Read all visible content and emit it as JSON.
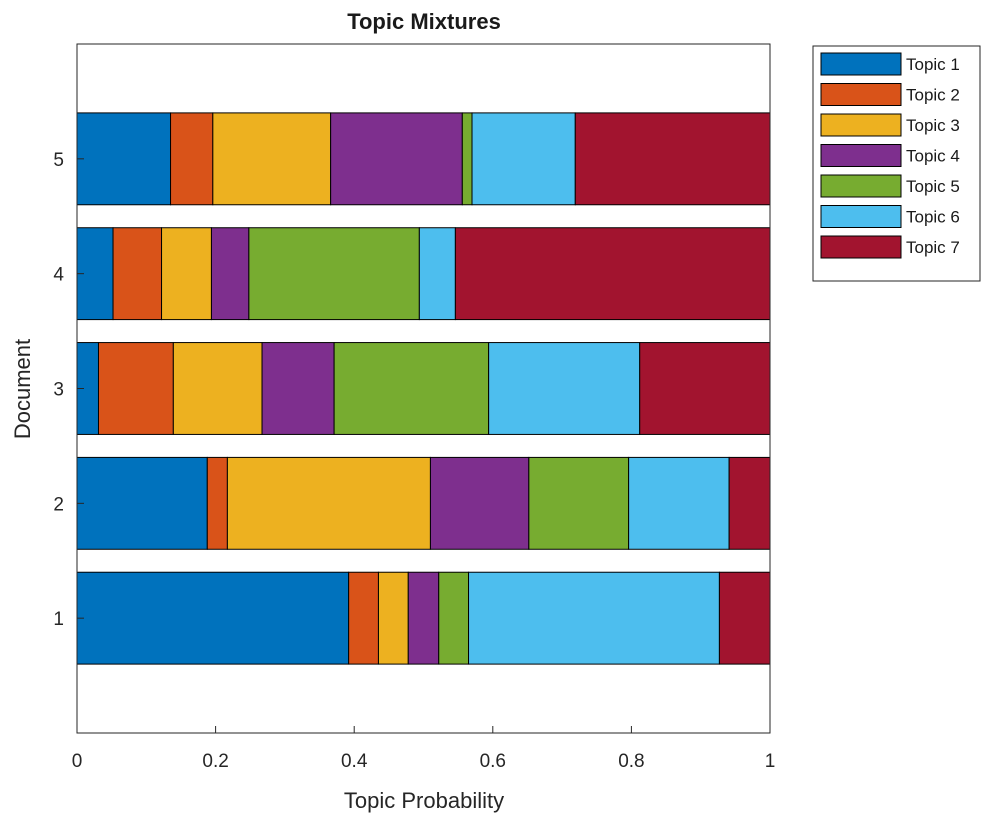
{
  "chart_data": {
    "type": "bar",
    "orientation": "horizontal",
    "stacked": true,
    "title": "Topic Mixtures",
    "xlabel": "Topic Probability",
    "ylabel": "Document",
    "xlim": [
      0,
      1
    ],
    "ylim": [
      0,
      6
    ],
    "xticks": [
      "0",
      "0.2",
      "0.4",
      "0.6",
      "0.8",
      "1"
    ],
    "categories": [
      "1",
      "2",
      "3",
      "4",
      "5"
    ],
    "legend_position": "outside-top-right",
    "grid": false,
    "series": [
      {
        "name": "Topic 1",
        "color": "#0072BD",
        "values": [
          0.392,
          0.188,
          0.031,
          0.052,
          0.135
        ]
      },
      {
        "name": "Topic 2",
        "color": "#D95319",
        "values": [
          0.043,
          0.029,
          0.108,
          0.07,
          0.061
        ]
      },
      {
        "name": "Topic 3",
        "color": "#EDB120",
        "values": [
          0.043,
          0.293,
          0.128,
          0.072,
          0.17
        ]
      },
      {
        "name": "Topic 4",
        "color": "#7E2F8E",
        "values": [
          0.044,
          0.142,
          0.104,
          0.054,
          0.19
        ]
      },
      {
        "name": "Topic 5",
        "color": "#77AC30",
        "values": [
          0.043,
          0.144,
          0.223,
          0.246,
          0.014
        ]
      },
      {
        "name": "Topic 6",
        "color": "#4DBEEE",
        "values": [
          0.362,
          0.145,
          0.218,
          0.052,
          0.149
        ]
      },
      {
        "name": "Topic 7",
        "color": "#A2142F",
        "values": [
          0.073,
          0.059,
          0.188,
          0.454,
          0.281
        ]
      }
    ]
  }
}
